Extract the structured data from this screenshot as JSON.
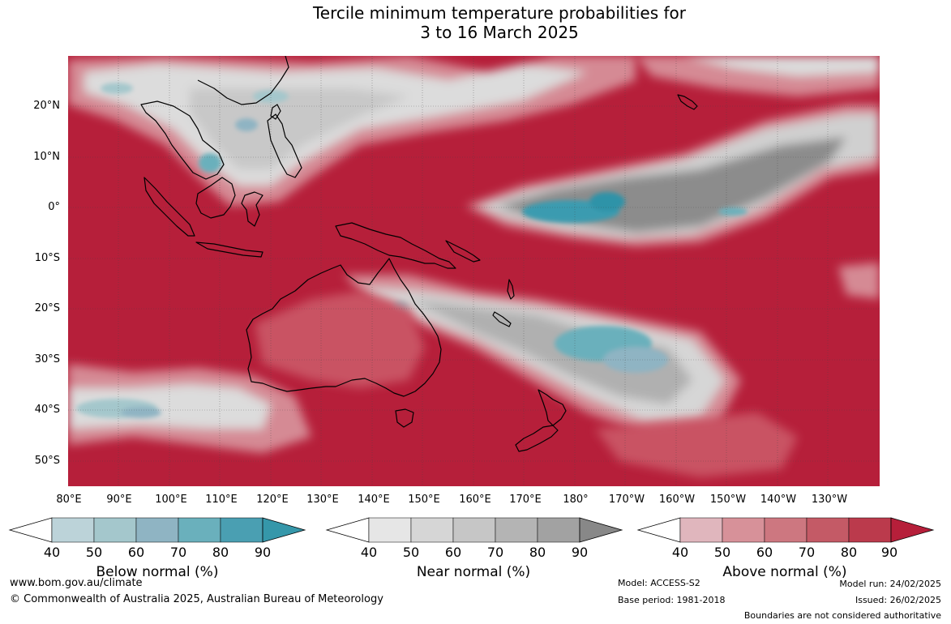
{
  "title_line1": "Tercile minimum temperature probabilities for",
  "title_line2": "3 to 16 March 2025",
  "lat_labels": [
    "20°N",
    "10°N",
    "0°",
    "10°S",
    "20°S",
    "30°S",
    "40°S",
    "50°S"
  ],
  "lon_labels": [
    "80°E",
    "90°E",
    "100°E",
    "110°E",
    "120°E",
    "130°E",
    "140°E",
    "150°E",
    "160°E",
    "170°E",
    "180°",
    "170°W",
    "160°W",
    "150°W",
    "140°W",
    "130°W"
  ],
  "colorbars": [
    {
      "name": "below-normal",
      "title": "Below normal (%)",
      "ticks": [
        "40",
        "50",
        "60",
        "70",
        "80",
        "90"
      ],
      "colors": [
        "#bcd3d9",
        "#a4c7cc",
        "#8fb4c3",
        "#6ab0bc",
        "#4a9fb2",
        "#3597aa"
      ]
    },
    {
      "name": "near-normal",
      "title": "Near normal (%)",
      "ticks": [
        "40",
        "50",
        "60",
        "70",
        "80",
        "90"
      ],
      "colors": [
        "#e6e6e6",
        "#d6d6d6",
        "#c6c6c6",
        "#b4b4b4",
        "#a2a2a2",
        "#888888"
      ]
    },
    {
      "name": "above-normal",
      "title": "Above normal (%)",
      "ticks": [
        "40",
        "50",
        "60",
        "70",
        "80",
        "90"
      ],
      "colors": [
        "#e0b6bd",
        "#d79199",
        "#cd7780",
        "#c45a66",
        "#bb3a4c",
        "#b61f3a"
      ]
    }
  ],
  "colors": {
    "above_strong": "#b61f3a",
    "above_mid": "#c95364",
    "near": "#c8c8c8",
    "near_dark": "#8c8c8c",
    "below": "#3a9bb0",
    "land_outline": "#000000"
  },
  "footer": {
    "website": "www.bom.gov.au/climate",
    "copyright": "© Commonwealth of Australia 2025, Australian Bureau of Meteorology",
    "model": "Model: ACCESS-S2",
    "base_period": "Base period: 1981-2018",
    "model_run": "Model run: 24/02/2025",
    "issued": "Issued: 26/02/2025",
    "disclaimer": "Boundaries are not considered authoritative"
  }
}
